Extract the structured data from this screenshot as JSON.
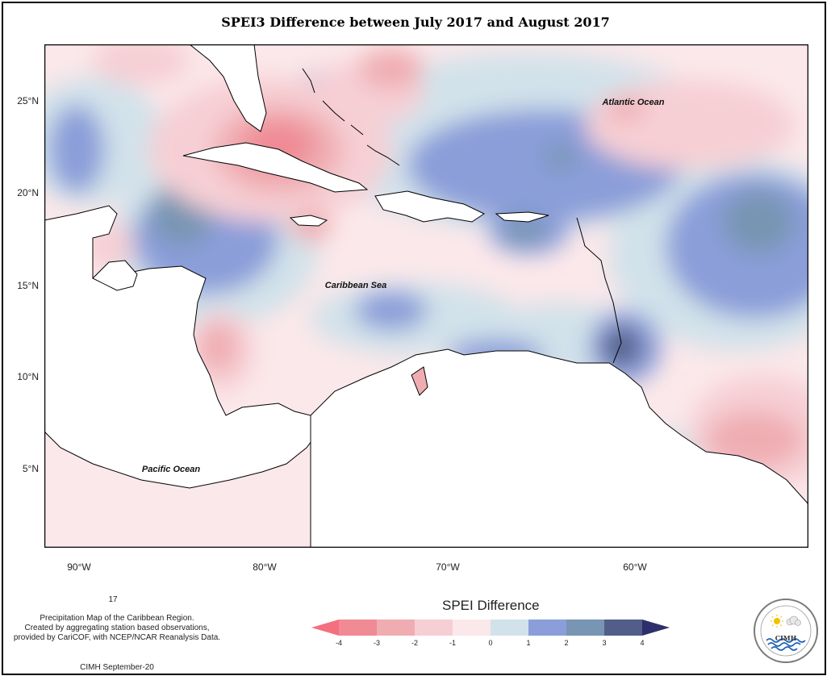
{
  "title": "SPEI3 Difference between July 2017 and August 2017",
  "map": {
    "labels": {
      "atlantic": "Atlantic Ocean",
      "caribbean": "Caribbean Sea",
      "pacific": "Pacific Ocean"
    },
    "lat_ticks": [
      "25°N",
      "20°N",
      "15°N",
      "10°N",
      "5°N"
    ],
    "lon_ticks": [
      "90°W",
      "80°W",
      "70°W",
      "60°W"
    ]
  },
  "legend": {
    "title": "SPEI Difference",
    "ticks": [
      "-4",
      "-3",
      "-2",
      "-1",
      "0",
      "1",
      "2",
      "3",
      "4"
    ],
    "colors": [
      "#f08a94",
      "#efadb2",
      "#f6cfd4",
      "#fbe8ea",
      "#d2e2ea",
      "#8b9ed9",
      "#7895b3",
      "#525e89"
    ],
    "arrow_left_color": "#f4707e",
    "arrow_right_color": "#2e2f6a"
  },
  "credits": {
    "number": "17",
    "line1": "Precipitation Map of the Caribbean Region.",
    "line2": "Created by aggregating station based observations,",
    "line3": "provided by CariCOF, with NCEP/NCAR Reanalysis Data.",
    "footer": "CIMH September-20"
  },
  "logo": {
    "text": "CIMH"
  }
}
